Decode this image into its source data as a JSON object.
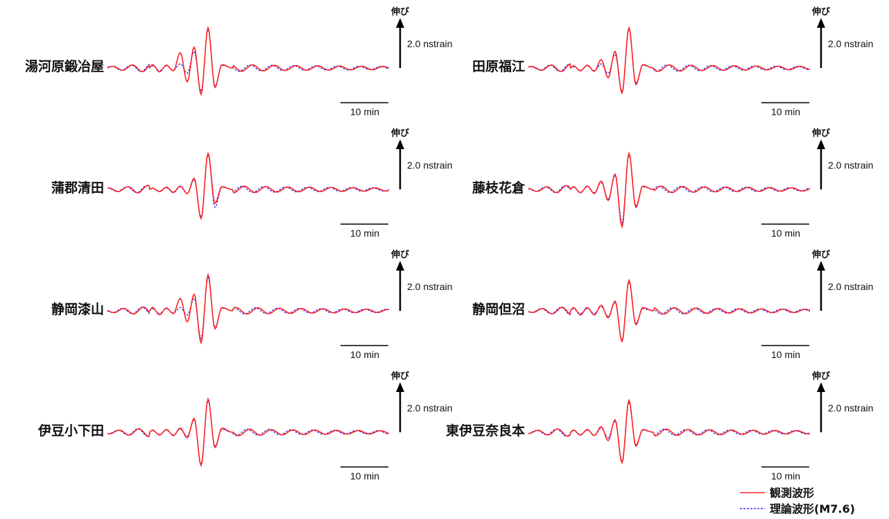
{
  "chart_data": {
    "type": "line",
    "panels": [
      {
        "station": "湯河原鍛冶屋",
        "column": 0,
        "row": 0,
        "obs_peaks": [
          0.12,
          -0.14,
          0.1,
          -0.1,
          0.55,
          -0.5,
          0.75,
          -0.95,
          1.45,
          -0.7,
          0.12
        ],
        "thr_peaks": [
          0.08,
          -0.1,
          0.08,
          -0.08,
          0.15,
          -0.2,
          0.6,
          -0.85,
          1.4,
          -0.65,
          0.1
        ]
      },
      {
        "station": "田原福江",
        "column": 1,
        "row": 0,
        "obs_peaks": [
          0.08,
          -0.1,
          0.1,
          -0.12,
          0.3,
          -0.35,
          0.6,
          -0.9,
          1.45,
          -0.6,
          0.12
        ],
        "thr_peaks": [
          0.05,
          -0.08,
          0.08,
          -0.1,
          0.15,
          -0.2,
          0.5,
          -0.85,
          1.4,
          -0.55,
          0.1
        ]
      },
      {
        "station": "蒲郡清田",
        "column": 0,
        "row": 1,
        "obs_peaks": [
          0.05,
          -0.08,
          0.08,
          -0.1,
          0.12,
          -0.15,
          0.4,
          -1.05,
          1.3,
          -0.5,
          0.1
        ],
        "thr_peaks": [
          0.04,
          -0.06,
          0.06,
          -0.12,
          0.1,
          -0.15,
          0.35,
          -1.0,
          1.25,
          -0.65,
          0.08
        ]
      },
      {
        "station": "藤枝花倉",
        "column": 1,
        "row": 1,
        "obs_peaks": [
          0.1,
          -0.12,
          0.12,
          -0.15,
          0.3,
          -0.4,
          0.55,
          -1.35,
          1.3,
          -0.65,
          0.12
        ],
        "thr_peaks": [
          0.08,
          -0.1,
          0.1,
          -0.12,
          0.25,
          -0.35,
          0.5,
          -1.2,
          1.25,
          -0.6,
          0.1
        ]
      },
      {
        "station": "静岡漆山",
        "column": 0,
        "row": 2,
        "obs_peaks": [
          0.12,
          -0.14,
          0.1,
          -0.1,
          0.45,
          -0.4,
          0.6,
          -1.15,
          1.3,
          -0.65,
          0.12
        ],
        "thr_peaks": [
          0.08,
          -0.1,
          0.08,
          -0.08,
          0.12,
          -0.15,
          0.45,
          -1.0,
          1.2,
          -0.6,
          0.1
        ]
      },
      {
        "station": "静岡但沼",
        "column": 1,
        "row": 2,
        "obs_peaks": [
          0.12,
          -0.15,
          0.12,
          -0.15,
          0.2,
          -0.25,
          0.35,
          -1.1,
          1.1,
          -0.5,
          0.12
        ],
        "thr_peaks": [
          0.08,
          -0.1,
          0.08,
          -0.1,
          0.15,
          -0.2,
          0.3,
          -1.05,
          1.05,
          -0.45,
          0.08
        ]
      },
      {
        "station": "伊豆小下田",
        "column": 0,
        "row": 3,
        "obs_peaks": [
          0.08,
          -0.1,
          0.1,
          -0.12,
          0.15,
          -0.2,
          0.5,
          -1.2,
          1.2,
          -0.55,
          0.15
        ],
        "thr_peaks": [
          0.06,
          -0.08,
          0.08,
          -0.1,
          0.12,
          -0.15,
          0.45,
          -1.15,
          1.15,
          -0.5,
          0.1
        ]
      },
      {
        "station": "東伊豆奈良本",
        "column": 1,
        "row": 3,
        "obs_peaks": [
          0.08,
          -0.1,
          0.1,
          -0.12,
          0.2,
          -0.3,
          0.45,
          -1.1,
          1.15,
          -0.5,
          0.1
        ],
        "thr_peaks": [
          0.06,
          -0.08,
          0.08,
          -0.1,
          0.15,
          -0.2,
          0.4,
          -1.05,
          1.1,
          -0.45,
          0.08
        ]
      }
    ],
    "amplitude_scale_label": "2.0 nstrain",
    "amplitude_scale_value": 2.0,
    "amplitude_unit": "nstrain",
    "stretch_label": "伸び",
    "time_scale_label": "10 min",
    "time_scale_minutes": 10,
    "legend": {
      "placement": "bottom-right",
      "observed": "観測波形",
      "theoretical": "理論波形(M7.6)"
    },
    "colors": {
      "observed": "#ff2020",
      "theoretical": "#3030ff"
    },
    "grid": false
  }
}
